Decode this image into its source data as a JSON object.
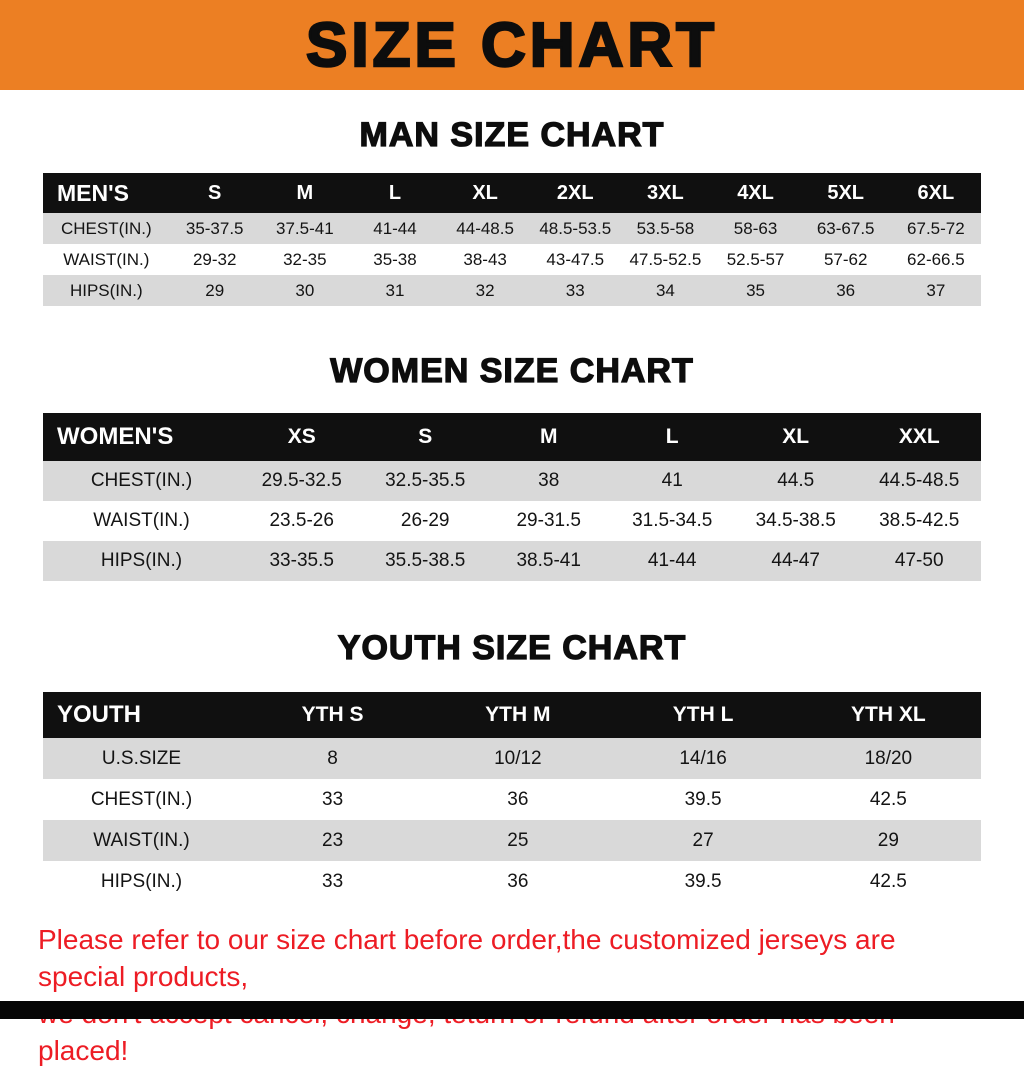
{
  "banner": {
    "title": "SIZE CHART",
    "bg_color": "#ec7f23",
    "text_color": "#0d0d0d"
  },
  "colors": {
    "table_header_bg": "#101010",
    "table_stripe": "#d9d9d9",
    "note_red": "#ed1c24",
    "bottom_bar": "#050505"
  },
  "sections": [
    {
      "title": "MAN SIZE CHART",
      "table": {
        "header": [
          "MEN'S",
          "S",
          "M",
          "L",
          "XL",
          "2XL",
          "3XL",
          "4XL",
          "5XL",
          "6XL"
        ],
        "rows": [
          [
            "CHEST(IN.)",
            "35-37.5",
            "37.5-41",
            "41-44",
            "44-48.5",
            "48.5-53.5",
            "53.5-58",
            "58-63",
            "63-67.5",
            "67.5-72"
          ],
          [
            "WAIST(IN.)",
            "29-32",
            "32-35",
            "35-38",
            "38-43",
            "43-47.5",
            "47.5-52.5",
            "52.5-57",
            "57-62",
            "62-66.5"
          ],
          [
            "HIPS(IN.)",
            "29",
            "30",
            "31",
            "32",
            "33",
            "34",
            "35",
            "36",
            "37"
          ]
        ]
      }
    },
    {
      "title": "WOMEN SIZE CHART",
      "table": {
        "header": [
          "WOMEN'S",
          "XS",
          "S",
          "M",
          "L",
          "XL",
          "XXL"
        ],
        "rows": [
          [
            "CHEST(IN.)",
            "29.5-32.5",
            "32.5-35.5",
            "38",
            "41",
            "44.5",
            "44.5-48.5"
          ],
          [
            "WAIST(IN.)",
            "23.5-26",
            "26-29",
            "29-31.5",
            "31.5-34.5",
            "34.5-38.5",
            "38.5-42.5"
          ],
          [
            "HIPS(IN.)",
            "33-35.5",
            "35.5-38.5",
            "38.5-41",
            "41-44",
            "44-47",
            "47-50"
          ]
        ]
      }
    },
    {
      "title": "YOUTH SIZE CHART",
      "table": {
        "header": [
          "YOUTH",
          "YTH S",
          "YTH M",
          "YTH L",
          "YTH XL"
        ],
        "rows": [
          [
            "U.S.SIZE",
            "8",
            "10/12",
            "14/16",
            "18/20"
          ],
          [
            "CHEST(IN.)",
            "33",
            "36",
            "39.5",
            "42.5"
          ],
          [
            "WAIST(IN.)",
            "23",
            "25",
            "27",
            "29"
          ],
          [
            "HIPS(IN.)",
            "33",
            "36",
            "39.5",
            "42.5"
          ]
        ]
      }
    }
  ],
  "footer": {
    "line1": "Please refer to our size chart before order,the customized jerseys are special products,",
    "line2": "we don't accept cancel, change, teturn or refund after order has been placed!"
  }
}
